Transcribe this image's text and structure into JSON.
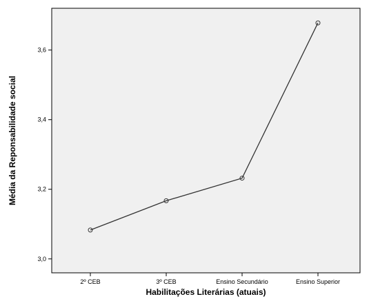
{
  "chart_data": {
    "type": "line",
    "title": "",
    "xlabel": "Habilitações Literárias (atuais)",
    "ylabel": "Média da Reponsabilidade social",
    "categories": [
      "2º CEB",
      "3º CEB",
      "Ensino Secundário",
      "Ensino Superior"
    ],
    "series": [
      {
        "values": [
          3.083,
          3.167,
          3.232,
          3.678
        ]
      }
    ],
    "ylim": [
      2.96,
      3.72
    ],
    "yticks": [
      {
        "value": 3.0,
        "label": "3,0"
      },
      {
        "value": 3.2,
        "label": "3,2"
      },
      {
        "value": 3.4,
        "label": "3,4"
      },
      {
        "value": 3.6,
        "label": "3,6"
      }
    ],
    "grid": false,
    "legend": "none",
    "colors": {
      "plot_background": "#f0f0f0",
      "line": "#333333",
      "marker_stroke": "#333333"
    }
  }
}
